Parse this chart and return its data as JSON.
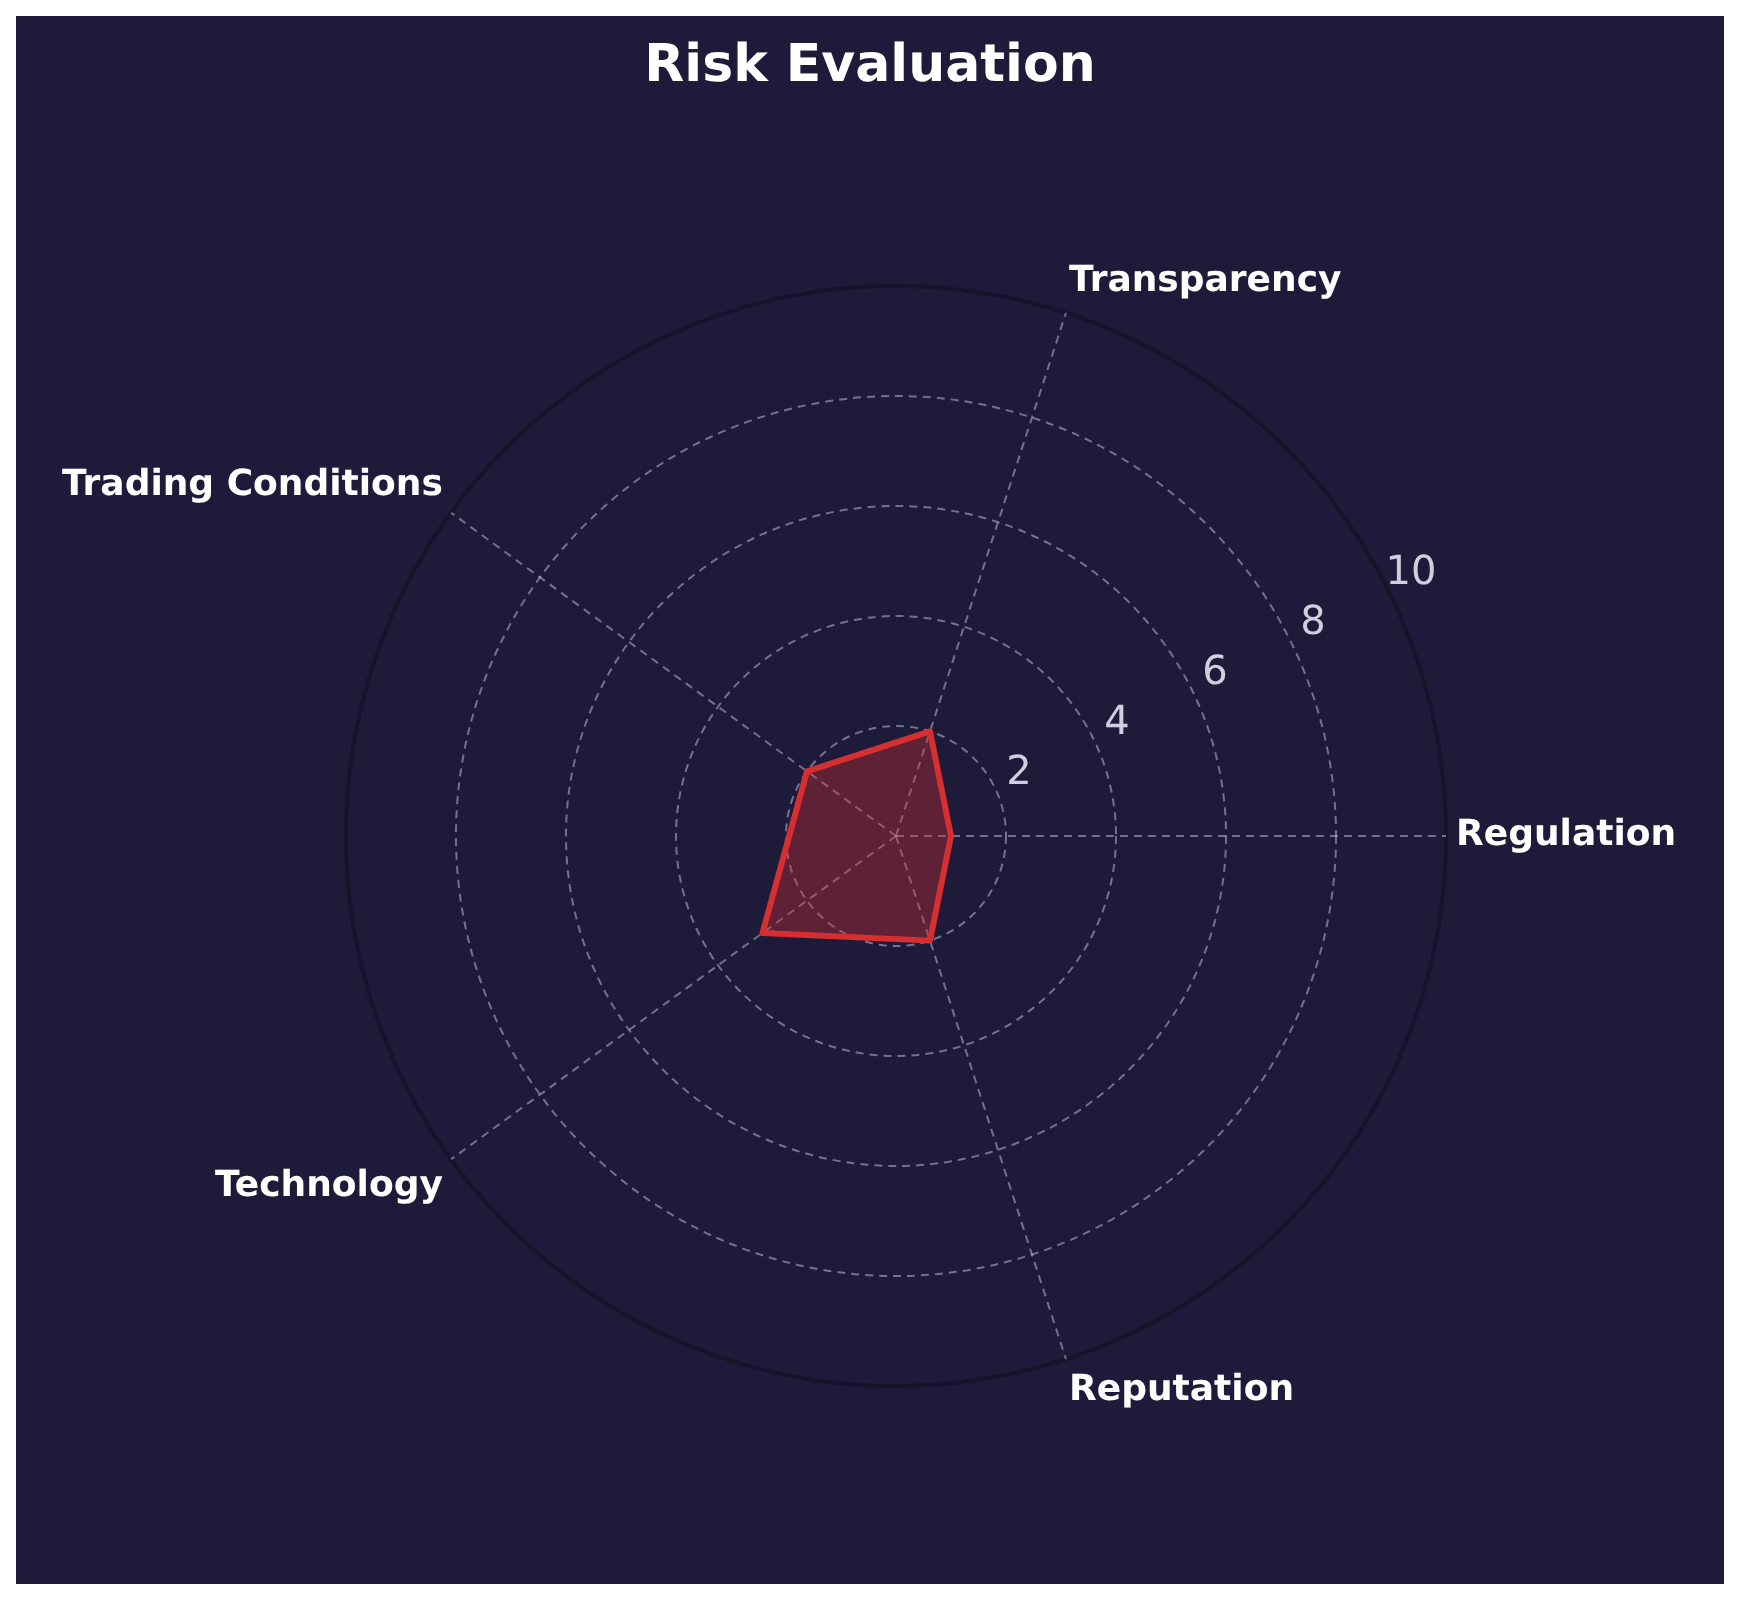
{
  "chart_data": {
    "type": "radar",
    "title": "Risk Evaluation",
    "categories": [
      "Transparency",
      "Regulation",
      "Reputation",
      "Technology",
      "Trading Conditions"
    ],
    "series": [
      {
        "color": "#d62f2f",
        "values": [
          2,
          1,
          2,
          3,
          2
        ]
      }
    ],
    "ylim": [
      0,
      10
    ],
    "yticks": [
      2,
      4,
      6,
      8,
      10
    ],
    "grid": true,
    "marker": "none"
  }
}
